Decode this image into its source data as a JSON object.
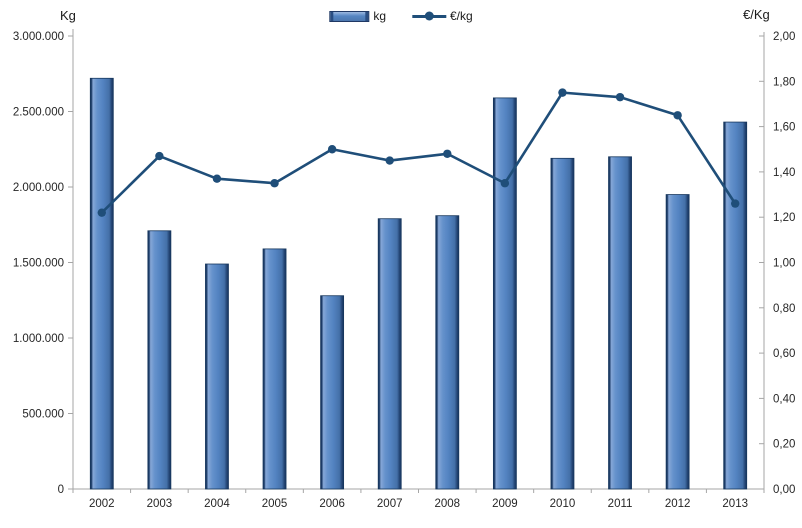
{
  "axes": {
    "left_title": "Kg",
    "right_title": "€/Kg",
    "left_ticks": [
      "3.000.000",
      "2.500.000",
      "2.000.000",
      "1.500.000",
      "1.000.000",
      "500.000",
      "0"
    ],
    "right_ticks": [
      "2,00",
      "1,80",
      "1,60",
      "1,40",
      "1,20",
      "1,00",
      "0,80",
      "0,60",
      "0,40",
      "0,20",
      "0,00"
    ]
  },
  "legend": {
    "kg_label": "kg",
    "eur_label": "€/kg"
  },
  "colors": {
    "bar_fill": "#5585C2",
    "bar_fill_light": "#8FAEDC",
    "bar_fill_dark": "#44699F",
    "bar_edge": "#16365C",
    "line": "#1F4E79",
    "axis": "#A6A6A6",
    "text": "#262626"
  },
  "chart_data": {
    "type": "combo",
    "categories": [
      "2002",
      "2003",
      "2004",
      "2005",
      "2006",
      "2007",
      "2008",
      "2009",
      "2010",
      "2011",
      "2012",
      "2013"
    ],
    "series": [
      {
        "name": "kg",
        "type": "bar",
        "axis": "left",
        "values": [
          2720000,
          1710000,
          1490000,
          1590000,
          1280000,
          1790000,
          1810000,
          2590000,
          2190000,
          2200000,
          1950000,
          2430000
        ]
      },
      {
        "name": "€/kg",
        "type": "line",
        "axis": "right",
        "values": [
          1.22,
          1.47,
          1.37,
          1.35,
          1.5,
          1.45,
          1.48,
          1.35,
          1.75,
          1.73,
          1.65,
          1.26
        ]
      }
    ],
    "left_axis": {
      "title": "Kg",
      "range": [
        0,
        3000000
      ],
      "tick_step": 500000
    },
    "right_axis": {
      "title": "€/Kg",
      "range": [
        0,
        2.0
      ],
      "tick_step": 0.2
    },
    "legend_position": "top-center",
    "grid": false
  }
}
